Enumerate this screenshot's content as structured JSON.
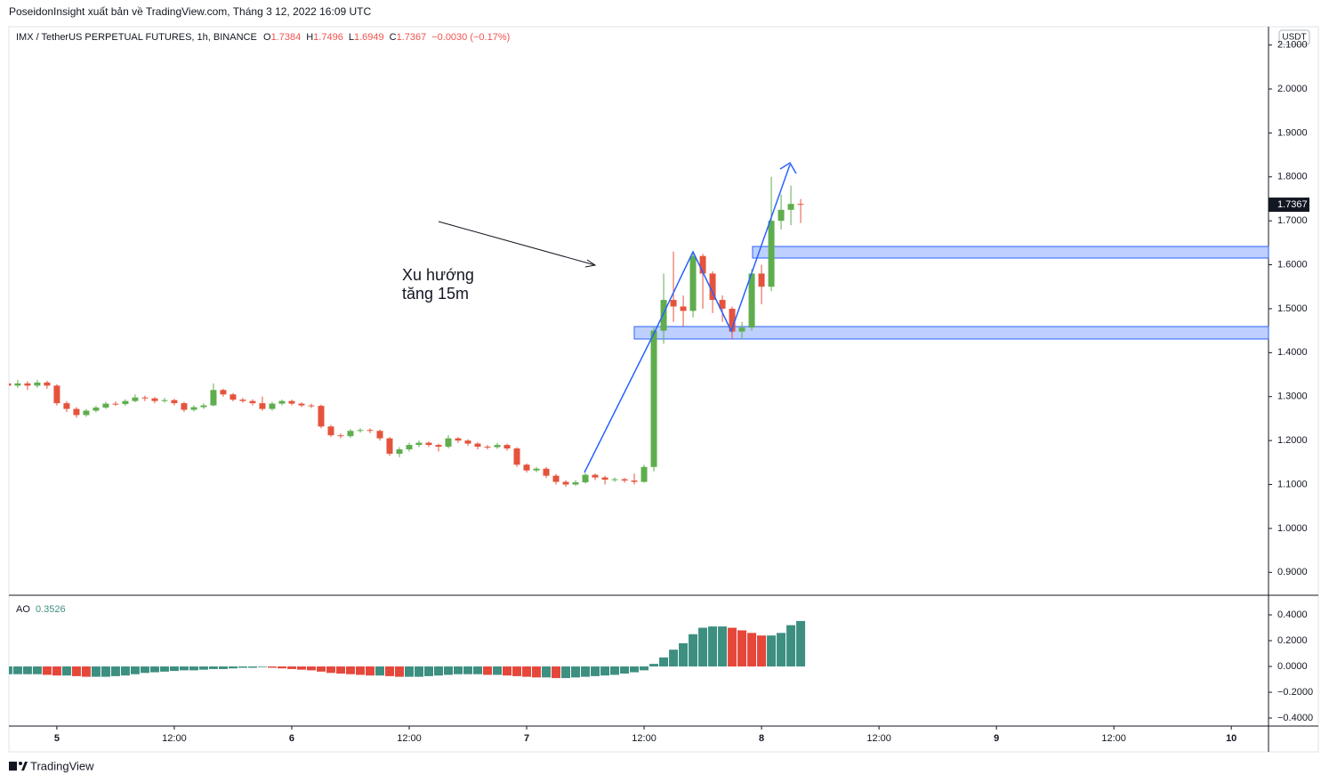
{
  "header": {
    "publisher": "PoseidonInsight xuất bản về TradingView.com, Tháng 3 12, 2022 16:09 UTC"
  },
  "chart_data": [
    {
      "type": "candlestick",
      "symbol": "IMX / TetherUS PERPETUAL FUTURES, 1h, BINANCE",
      "ohlc_prefixes": [
        "O",
        "H",
        "L",
        "C"
      ],
      "change": "−0.0030 (−0.17%)",
      "currency": "USDT",
      "annotation": [
        "Xu hướng",
        "tăng 15m"
      ],
      "up_color": "#5fad4e",
      "down_color": "#e5533d",
      "open": [
        1.33,
        1.325,
        1.33,
        1.325,
        1.332,
        1.325,
        1.285,
        1.272,
        1.258,
        1.268,
        1.275,
        1.284,
        1.283,
        1.29,
        1.298,
        1.296,
        1.29,
        1.292,
        1.285,
        1.27,
        1.276,
        1.28,
        1.315,
        1.305,
        1.293,
        1.29,
        1.285,
        1.272,
        1.284,
        1.29,
        1.284,
        1.28,
        1.279,
        1.232,
        1.212,
        1.21,
        1.222,
        1.224,
        1.222,
        1.205,
        1.17,
        1.18,
        1.19,
        1.195,
        1.19,
        1.186,
        1.205,
        1.2,
        1.193,
        1.186,
        1.185,
        1.19,
        1.182,
        1.145,
        1.132,
        1.136,
        1.12,
        1.106,
        1.1,
        1.105,
        1.122,
        1.116,
        1.111,
        1.112,
        1.109,
        1.106,
        1.14,
        1.45,
        1.52,
        1.505,
        1.495,
        1.62,
        1.58,
        1.52,
        1.5,
        1.448,
        1.457,
        1.58,
        1.55,
        1.7,
        1.725,
        1.7384
      ],
      "high": [
        1.34,
        1.338,
        1.335,
        1.338,
        1.336,
        1.328,
        1.29,
        1.276,
        1.272,
        1.279,
        1.288,
        1.289,
        1.294,
        1.305,
        1.302,
        1.299,
        1.297,
        1.295,
        1.288,
        1.28,
        1.285,
        1.33,
        1.318,
        1.308,
        1.297,
        1.294,
        1.3,
        1.288,
        1.293,
        1.293,
        1.287,
        1.284,
        1.282,
        1.236,
        1.216,
        1.226,
        1.228,
        1.228,
        1.225,
        1.208,
        1.185,
        1.195,
        1.2,
        1.198,
        1.193,
        1.212,
        1.208,
        1.203,
        1.196,
        1.19,
        1.195,
        1.193,
        1.185,
        1.148,
        1.14,
        1.14,
        1.124,
        1.11,
        1.11,
        1.126,
        1.125,
        1.12,
        1.116,
        1.115,
        1.125,
        1.145,
        1.46,
        1.58,
        1.63,
        1.53,
        1.625,
        1.625,
        1.585,
        1.53,
        1.505,
        1.47,
        1.59,
        1.6,
        1.8,
        1.76,
        1.78,
        1.7496
      ],
      "low": [
        1.3,
        1.32,
        1.315,
        1.32,
        1.318,
        1.28,
        1.265,
        1.252,
        1.254,
        1.264,
        1.272,
        1.279,
        1.279,
        1.287,
        1.29,
        1.285,
        1.286,
        1.28,
        1.265,
        1.266,
        1.272,
        1.278,
        1.3,
        1.289,
        1.286,
        1.28,
        1.268,
        1.268,
        1.28,
        1.28,
        1.276,
        1.274,
        1.228,
        1.208,
        1.205,
        1.206,
        1.218,
        1.217,
        1.2,
        1.165,
        1.162,
        1.175,
        1.185,
        1.185,
        1.175,
        1.182,
        1.195,
        1.188,
        1.18,
        1.18,
        1.181,
        1.177,
        1.14,
        1.127,
        1.128,
        1.115,
        1.1,
        1.095,
        1.097,
        1.102,
        1.11,
        1.1,
        1.106,
        1.104,
        1.1,
        1.104,
        1.13,
        1.42,
        1.47,
        1.46,
        1.48,
        1.5,
        1.49,
        1.47,
        1.43,
        1.43,
        1.45,
        1.51,
        1.54,
        1.68,
        1.69,
        1.6949
      ],
      "close": [
        1.325,
        1.33,
        1.325,
        1.332,
        1.325,
        1.285,
        1.272,
        1.258,
        1.268,
        1.275,
        1.284,
        1.283,
        1.29,
        1.298,
        1.296,
        1.29,
        1.292,
        1.285,
        1.27,
        1.276,
        1.28,
        1.315,
        1.305,
        1.293,
        1.29,
        1.285,
        1.272,
        1.284,
        1.29,
        1.284,
        1.28,
        1.279,
        1.232,
        1.212,
        1.21,
        1.222,
        1.224,
        1.222,
        1.205,
        1.17,
        1.18,
        1.19,
        1.195,
        1.19,
        1.186,
        1.205,
        1.2,
        1.193,
        1.186,
        1.185,
        1.19,
        1.182,
        1.145,
        1.132,
        1.136,
        1.12,
        1.106,
        1.1,
        1.105,
        1.122,
        1.116,
        1.111,
        1.112,
        1.109,
        1.106,
        1.14,
        1.45,
        1.52,
        1.505,
        1.495,
        1.62,
        1.58,
        1.52,
        1.5,
        1.448,
        1.457,
        1.58,
        1.55,
        1.7,
        1.725,
        1.7384,
        1.7367
      ],
      "xlim": [
        0.1,
        128.8
      ],
      "xticks": [
        {
          "value": 5,
          "label": "5"
        },
        {
          "value": 17,
          "label": "12:00"
        },
        {
          "value": 29,
          "label": "6"
        },
        {
          "value": 41,
          "label": "12:00"
        },
        {
          "value": 53,
          "label": "7"
        },
        {
          "value": 65,
          "label": "12:00"
        },
        {
          "value": 77,
          "label": "8"
        },
        {
          "value": 89,
          "label": "12:00"
        },
        {
          "value": 101,
          "label": "9"
        },
        {
          "value": 113,
          "label": "12:00"
        },
        {
          "value": 125,
          "label": "10"
        }
      ],
      "ylim": [
        0.85,
        2.1417
      ],
      "yticks": [
        {
          "value": 0.9,
          "label": "0.9000"
        },
        {
          "value": 1.0,
          "label": "1.0000"
        },
        {
          "value": 1.1,
          "label": "1.1000"
        },
        {
          "value": 1.2,
          "label": "1.2000"
        },
        {
          "value": 1.3,
          "label": "1.3000"
        },
        {
          "value": 1.4,
          "label": "1.4000"
        },
        {
          "value": 1.5,
          "label": "1.5000"
        },
        {
          "value": 1.6,
          "label": "1.6000"
        },
        {
          "value": 1.7,
          "label": "1.7000"
        },
        {
          "value": 1.8,
          "label": "1.8000"
        },
        {
          "value": 1.9,
          "label": "1.9000"
        },
        {
          "value": 2.0,
          "label": "2.0000"
        },
        {
          "value": 2.1,
          "label": "2.1000"
        }
      ]
    },
    {
      "type": "bar",
      "title": "AO",
      "up_color": "#3d8f80",
      "down_color": "#e5473b",
      "values": [
        -0.06,
        -0.06,
        -0.06,
        -0.06,
        -0.065,
        -0.07,
        -0.07,
        -0.075,
        -0.08,
        -0.08,
        -0.08,
        -0.075,
        -0.07,
        -0.06,
        -0.05,
        -0.045,
        -0.04,
        -0.035,
        -0.03,
        -0.03,
        -0.025,
        -0.02,
        -0.02,
        -0.015,
        -0.01,
        -0.01,
        -0.005,
        -0.01,
        -0.015,
        -0.02,
        -0.025,
        -0.03,
        -0.04,
        -0.05,
        -0.055,
        -0.06,
        -0.065,
        -0.07,
        -0.07,
        -0.075,
        -0.08,
        -0.08,
        -0.08,
        -0.075,
        -0.07,
        -0.065,
        -0.06,
        -0.06,
        -0.06,
        -0.065,
        -0.065,
        -0.07,
        -0.075,
        -0.08,
        -0.085,
        -0.085,
        -0.09,
        -0.09,
        -0.085,
        -0.08,
        -0.075,
        -0.07,
        -0.065,
        -0.055,
        -0.045,
        -0.03,
        0.02,
        0.07,
        0.13,
        0.18,
        0.25,
        0.3,
        0.31,
        0.31,
        0.3,
        0.28,
        0.26,
        0.24,
        0.24,
        0.26,
        0.32,
        0.3526
      ],
      "ylim": [
        -0.455,
        0.545
      ],
      "yticks": [
        {
          "value": -0.4,
          "label": "−0.4000"
        },
        {
          "value": -0.2,
          "label": "−0.2000"
        },
        {
          "value": 0,
          "label": "0.0000"
        },
        {
          "value": 0.2,
          "label": "0.2000"
        },
        {
          "value": 0.4,
          "label": "0.4000"
        }
      ]
    }
  ],
  "footer": {
    "brand": "TradingView"
  }
}
